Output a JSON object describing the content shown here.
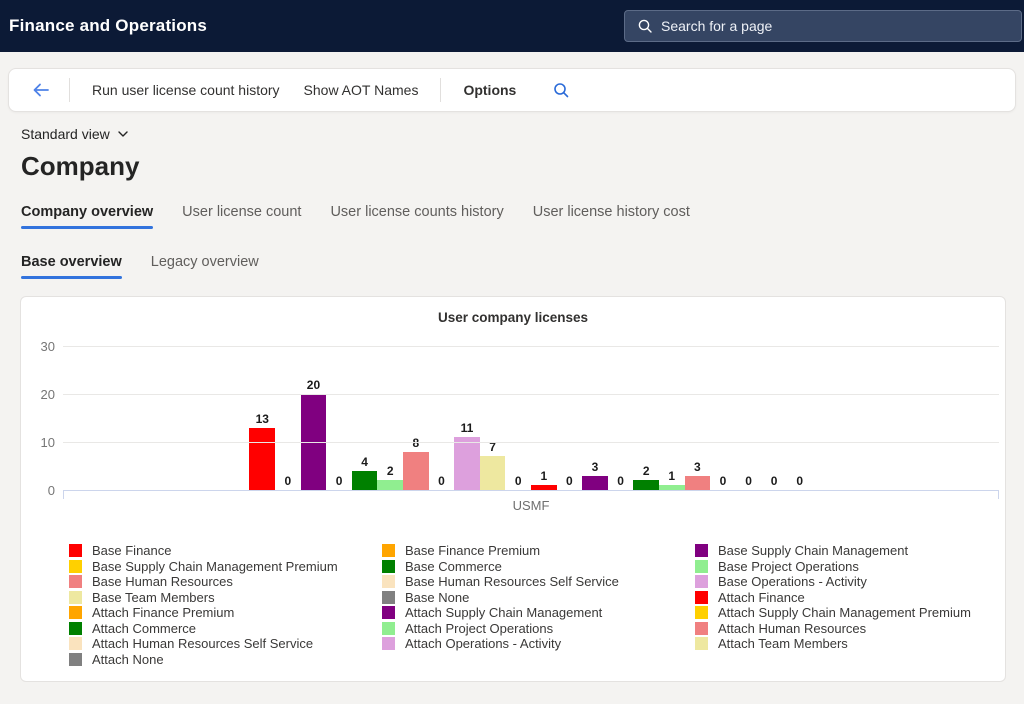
{
  "topbar": {
    "app_title": "Finance and Operations",
    "search_placeholder": "Search for a page"
  },
  "command_bar": {
    "run_label": "Run user license count history",
    "aot_label": "Show AOT Names",
    "options_label": "Options"
  },
  "page": {
    "view_selector": "Standard view",
    "title": "Company"
  },
  "tabs": [
    {
      "label": "Company overview",
      "active": true
    },
    {
      "label": "User license count",
      "active": false
    },
    {
      "label": "User license counts history",
      "active": false
    },
    {
      "label": "User license history cost",
      "active": false
    }
  ],
  "subtabs": [
    {
      "label": "Base overview",
      "active": true
    },
    {
      "label": "Legacy overview",
      "active": false
    }
  ],
  "chart_data": {
    "type": "bar",
    "title": "User company licenses",
    "categories": [
      "USMF"
    ],
    "xlabel": "",
    "ylabel": "",
    "ylim": [
      0,
      30
    ],
    "yticks": [
      30,
      20,
      10,
      0
    ],
    "grid": true,
    "legend_position": "bottom",
    "series": [
      {
        "name": "Base Finance",
        "color": "#ff0000",
        "value": 13
      },
      {
        "name": "Base Finance Premium",
        "color": "#ffa500",
        "value": 0
      },
      {
        "name": "Base Supply Chain Management",
        "color": "#800080",
        "value": 20
      },
      {
        "name": "Base Supply Chain Management Premium",
        "color": "#ffd000",
        "value": 0
      },
      {
        "name": "Base Commerce",
        "color": "#008000",
        "value": 4
      },
      {
        "name": "Base Project Operations",
        "color": "#90ee90",
        "value": 2
      },
      {
        "name": "Base Human Resources",
        "color": "#f08080",
        "value": 8
      },
      {
        "name": "Base Human Resources Self Service",
        "color": "#fae3be",
        "value": 0
      },
      {
        "name": "Base Operations - Activity",
        "color": "#dda0dd",
        "value": 11
      },
      {
        "name": "Base Team Members",
        "color": "#eee8a0",
        "value": 7
      },
      {
        "name": "Base None",
        "color": "#808080",
        "value": 0
      },
      {
        "name": "Attach Finance",
        "color": "#ff0000",
        "value": 1
      },
      {
        "name": "Attach Finance Premium",
        "color": "#ffa500",
        "value": 0
      },
      {
        "name": "Attach Supply Chain Management",
        "color": "#800080",
        "value": 3
      },
      {
        "name": "Attach Supply Chain Management Premium",
        "color": "#ffd000",
        "value": 0
      },
      {
        "name": "Attach Commerce",
        "color": "#008000",
        "value": 2
      },
      {
        "name": "Attach Project Operations",
        "color": "#90ee90",
        "value": 1
      },
      {
        "name": "Attach Human Resources",
        "color": "#f08080",
        "value": 3
      },
      {
        "name": "Attach Human Resources Self Service",
        "color": "#fae3be",
        "value": 0
      },
      {
        "name": "Attach Operations - Activity",
        "color": "#dda0dd",
        "value": 0
      },
      {
        "name": "Attach Team Members",
        "color": "#eee8a0",
        "value": 0
      },
      {
        "name": "Attach None",
        "color": "#808080",
        "value": 0
      }
    ],
    "legend_columns": [
      [
        0,
        3,
        6,
        9,
        12,
        15,
        18,
        21
      ],
      [
        1,
        4,
        7,
        10,
        13,
        16,
        19
      ],
      [
        2,
        5,
        8,
        11,
        14,
        17,
        20
      ]
    ],
    "accent_colors": {
      "axis_line": "#ccd5ec",
      "gridline": "#e9e8e6",
      "tab_underline": "#3273dd"
    }
  }
}
